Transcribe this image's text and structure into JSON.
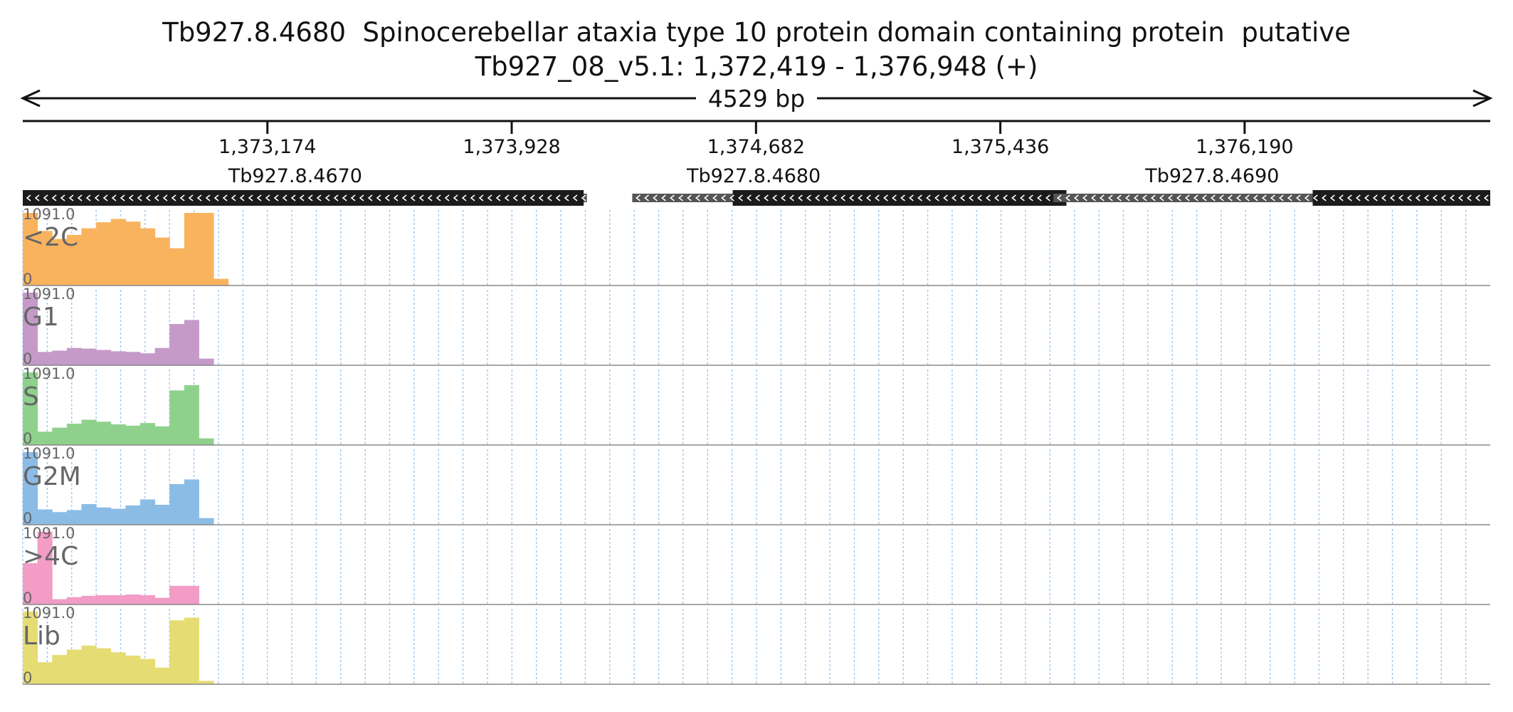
{
  "title_line1": "Tb927.8.4680  Spinocerebellar ataxia type 10 protein domain containing protein  putative",
  "title_line2": "Tb927_08_v5.1: 1,372,419 - 1,376,948 (+)",
  "chart_data": {
    "type": "area",
    "region": {
      "chrom": "Tb927_08_v5.1",
      "start": 1372419,
      "end": 1376948,
      "strand": "+",
      "length_label": "4529 bp"
    },
    "axis_ticks": [
      {
        "pos": 1373174,
        "label": "1,373,174"
      },
      {
        "pos": 1373928,
        "label": "1,373,928"
      },
      {
        "pos": 1374682,
        "label": "1,374,682"
      },
      {
        "pos": 1375436,
        "label": "1,375,436"
      },
      {
        "pos": 1376190,
        "label": "1,376,190"
      }
    ],
    "genes": [
      {
        "name": "Tb927.8.4670",
        "start": 1372419,
        "end": 1374160,
        "cds_start": 1372419,
        "cds_end": 1374150,
        "strand": "-",
        "label_pos": 1373260
      },
      {
        "name": "Tb927.8.4680",
        "start": 1374300,
        "end": 1375700,
        "cds_start": 1374610,
        "cds_end": 1375640,
        "strand": "-",
        "label_pos": 1374675
      },
      {
        "name": "Tb927.8.4690",
        "start": 1375600,
        "end": 1376948,
        "cds_start": 1376400,
        "cds_end": 1376948,
        "strand": "-",
        "label_pos": 1376090
      }
    ],
    "y_max_label": "1091.0",
    "y_min_label": "0",
    "ylim": [
      0,
      1091
    ],
    "x": [
      1372419,
      1372464,
      1372510,
      1372555,
      1372600,
      1372646,
      1372691,
      1372736,
      1372782,
      1372827,
      1372872,
      1372918,
      1372963,
      1373008,
      1373053,
      1373099,
      1373144,
      1373189,
      1373235,
      1373280,
      1373325,
      1373371,
      1373416,
      1373461,
      1373507,
      1373552,
      1373597,
      1373642,
      1373688,
      1373733,
      1373778,
      1373824,
      1373869,
      1373914,
      1373960,
      1374005,
      1374050,
      1374096,
      1374141,
      1374186,
      1374231,
      1374277,
      1374322,
      1374367,
      1374413,
      1374458,
      1374503,
      1374549,
      1374594,
      1374639,
      1374685,
      1374730,
      1374775,
      1374820,
      1374866,
      1374911,
      1374956,
      1375002,
      1375047,
      1375092,
      1375138,
      1375183,
      1375228,
      1375274,
      1375319,
      1375364,
      1375409,
      1375455,
      1375500,
      1375545,
      1375591,
      1375636,
      1375681,
      1375727,
      1375772,
      1375817,
      1375863,
      1375908,
      1375953,
      1375998,
      1376044,
      1376089,
      1376134,
      1376180,
      1376225,
      1376270,
      1376316,
      1376361,
      1376406,
      1376452,
      1376497,
      1376542,
      1376587,
      1376633,
      1376678,
      1376723,
      1376769,
      1376814,
      1376859,
      1376905
    ],
    "series": [
      {
        "name": "<2C",
        "color": "#f9b35f",
        "values": [
          1091,
          820,
          700,
          760,
          860,
          950,
          1000,
          960,
          860,
          720,
          560,
          1091,
          1091,
          100,
          0,
          0,
          0,
          0,
          0,
          0,
          0,
          0,
          0,
          0,
          0,
          0,
          0,
          0,
          0,
          0,
          0,
          0,
          0,
          0,
          0,
          0,
          0,
          0,
          0,
          0,
          0,
          0,
          0,
          0,
          0,
          0,
          0,
          0,
          0,
          0,
          0,
          0,
          0,
          0,
          0,
          0,
          0,
          0,
          0,
          0,
          0,
          0,
          0,
          0,
          0,
          0,
          0,
          0,
          0,
          0,
          0,
          0,
          0,
          0,
          0,
          0,
          0,
          0,
          0,
          0,
          0,
          0,
          0,
          0,
          0,
          0,
          0,
          0,
          0,
          0,
          0,
          0,
          0,
          0,
          0,
          0,
          0,
          0,
          0,
          0
        ]
      },
      {
        "name": "G1",
        "color": "#c59ac9",
        "values": [
          1091,
          200,
          220,
          260,
          250,
          230,
          210,
          200,
          180,
          260,
          620,
          680,
          100,
          0,
          0,
          0,
          0,
          0,
          0,
          0,
          0,
          0,
          0,
          0,
          0,
          0,
          0,
          0,
          0,
          0,
          0,
          0,
          0,
          0,
          0,
          0,
          0,
          0,
          0,
          0,
          0,
          0,
          0,
          0,
          0,
          0,
          0,
          0,
          0,
          0,
          0,
          0,
          0,
          0,
          0,
          0,
          0,
          0,
          0,
          0,
          0,
          0,
          0,
          0,
          0,
          0,
          0,
          0,
          0,
          0,
          0,
          0,
          0,
          0,
          0,
          0,
          0,
          0,
          0,
          0,
          0,
          0,
          0,
          0,
          0,
          0,
          0,
          0,
          0,
          0,
          0,
          0,
          0,
          0,
          0,
          0,
          0,
          0,
          0,
          0
        ]
      },
      {
        "name": "S",
        "color": "#8fd18c",
        "values": [
          1091,
          200,
          260,
          320,
          380,
          350,
          310,
          290,
          330,
          280,
          820,
          900,
          100,
          0,
          0,
          0,
          0,
          0,
          0,
          0,
          0,
          0,
          0,
          0,
          0,
          0,
          0,
          0,
          0,
          0,
          0,
          0,
          0,
          0,
          0,
          0,
          0,
          0,
          0,
          0,
          0,
          0,
          0,
          0,
          0,
          0,
          0,
          0,
          0,
          0,
          0,
          0,
          0,
          0,
          0,
          0,
          0,
          0,
          0,
          0,
          0,
          0,
          0,
          0,
          0,
          0,
          0,
          0,
          0,
          0,
          0,
          0,
          0,
          0,
          0,
          0,
          0,
          0,
          0,
          0,
          0,
          0,
          0,
          0,
          0,
          0,
          0,
          0,
          0,
          0,
          0,
          0,
          0,
          0,
          0,
          0,
          0,
          0,
          0,
          0
        ]
      },
      {
        "name": "G2M",
        "color": "#8abce6",
        "values": [
          1091,
          230,
          190,
          220,
          310,
          260,
          240,
          290,
          380,
          300,
          610,
          680,
          100,
          0,
          0,
          0,
          0,
          0,
          0,
          0,
          0,
          0,
          0,
          0,
          0,
          0,
          0,
          0,
          0,
          0,
          0,
          0,
          0,
          0,
          0,
          0,
          0,
          0,
          0,
          0,
          0,
          0,
          0,
          0,
          0,
          0,
          0,
          0,
          0,
          0,
          0,
          0,
          0,
          0,
          0,
          0,
          0,
          0,
          0,
          0,
          0,
          0,
          0,
          0,
          0,
          0,
          0,
          0,
          0,
          0,
          0,
          0,
          0,
          0,
          0,
          0,
          0,
          0,
          0,
          0,
          0,
          0,
          0,
          0,
          0,
          0,
          0,
          0,
          0,
          0,
          0,
          0,
          0,
          0,
          0,
          0,
          0,
          0,
          0,
          0
        ]
      },
      {
        "name": ">4C",
        "color": "#f29cc6",
        "values": [
          620,
          1091,
          80,
          110,
          130,
          140,
          140,
          150,
          140,
          100,
          280,
          280,
          0,
          0,
          0,
          0,
          0,
          0,
          0,
          0,
          0,
          0,
          0,
          0,
          0,
          0,
          0,
          0,
          0,
          0,
          0,
          0,
          0,
          0,
          0,
          0,
          0,
          0,
          0,
          0,
          0,
          0,
          0,
          0,
          0,
          0,
          0,
          0,
          0,
          0,
          0,
          0,
          0,
          0,
          0,
          0,
          0,
          0,
          0,
          0,
          0,
          0,
          0,
          0,
          0,
          0,
          0,
          0,
          0,
          0,
          0,
          0,
          0,
          0,
          0,
          0,
          0,
          0,
          0,
          0,
          0,
          0,
          0,
          0,
          0,
          0,
          0,
          0,
          0,
          0,
          0,
          0,
          0,
          0,
          0,
          0,
          0,
          0,
          0,
          0
        ]
      },
      {
        "name": "Lib",
        "color": "#e6dc74",
        "values": [
          1091,
          330,
          440,
          520,
          580,
          540,
          480,
          430,
          380,
          250,
          960,
          1000,
          50,
          0,
          0,
          0,
          0,
          0,
          0,
          0,
          0,
          0,
          0,
          0,
          0,
          0,
          0,
          0,
          0,
          0,
          0,
          0,
          0,
          0,
          0,
          0,
          0,
          0,
          0,
          0,
          0,
          0,
          0,
          0,
          0,
          0,
          0,
          0,
          0,
          0,
          0,
          0,
          0,
          0,
          0,
          0,
          0,
          0,
          0,
          0,
          0,
          0,
          0,
          0,
          0,
          0,
          0,
          0,
          0,
          0,
          0,
          0,
          0,
          0,
          0,
          0,
          0,
          0,
          0,
          0,
          0,
          0,
          0,
          0,
          0,
          0,
          0,
          0,
          0,
          0,
          0,
          0,
          0,
          0,
          0,
          0,
          0,
          0,
          0,
          0
        ]
      }
    ],
    "grid": true
  }
}
